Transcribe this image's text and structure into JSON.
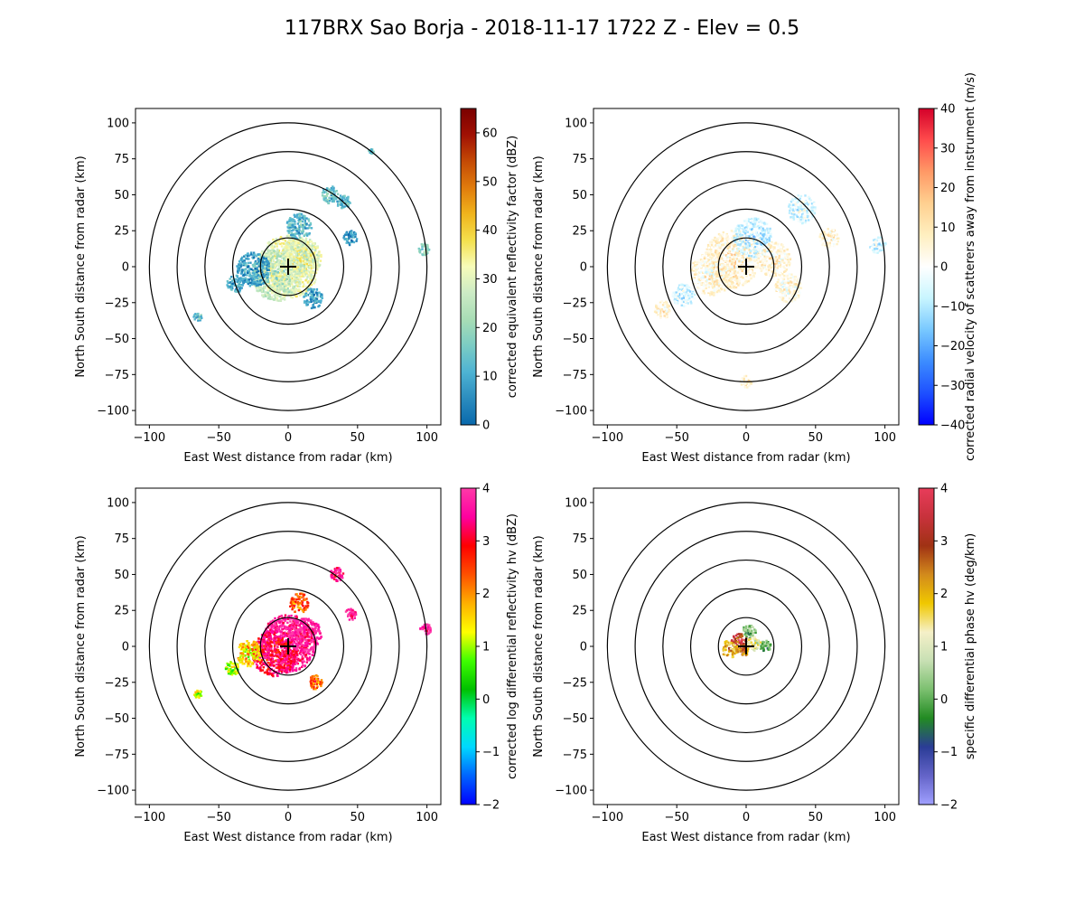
{
  "figure": {
    "title": "117BRX Sao Borja - 2018-11-17 1722 Z -  Elev = 0.5"
  },
  "chart_data": [
    {
      "type": "heatmap",
      "field": "reflectivity",
      "xlabel": "East West distance from radar (km)",
      "ylabel": "North South distance from radar (km)",
      "xlim": [
        -110,
        110
      ],
      "ylim": [
        -110,
        110
      ],
      "xticks": [
        -100,
        -50,
        0,
        50,
        100
      ],
      "yticks": [
        -100,
        -75,
        -50,
        -25,
        0,
        25,
        50,
        75,
        100
      ],
      "range_rings_km": [
        20,
        40,
        60,
        80,
        100
      ],
      "colorbar": {
        "label": "corrected equivalent reflectivity factor (dBZ)",
        "min": 0,
        "max": 65,
        "ticks": [
          0,
          10,
          20,
          30,
          40,
          50,
          60
        ],
        "colors": [
          "#0868ac",
          "#2b8cbe",
          "#4eb3d3",
          "#7bccc4",
          "#a8ddb5",
          "#ccebc5",
          "#f7fcb9",
          "#f4e04d",
          "#f0b41c",
          "#e07b0c",
          "#c44a05",
          "#a01003",
          "#7a0000"
        ]
      },
      "echoes": [
        {
          "x": 0,
          "y": 0,
          "r": 22,
          "value": 32
        },
        {
          "x": -8,
          "y": -6,
          "r": 18,
          "value": 26
        },
        {
          "x": 10,
          "y": 6,
          "r": 14,
          "value": 30
        },
        {
          "x": 8,
          "y": 28,
          "r": 9,
          "value": 12
        },
        {
          "x": -25,
          "y": -2,
          "r": 12,
          "value": 8
        },
        {
          "x": -38,
          "y": -12,
          "r": 6,
          "value": 10
        },
        {
          "x": 18,
          "y": -22,
          "r": 7,
          "value": 9
        },
        {
          "x": 30,
          "y": 50,
          "r": 6,
          "value": 14
        },
        {
          "x": 40,
          "y": 45,
          "r": 5,
          "value": 12
        },
        {
          "x": 45,
          "y": 20,
          "r": 5,
          "value": 8
        },
        {
          "x": 98,
          "y": 12,
          "r": 4,
          "value": 16
        },
        {
          "x": -65,
          "y": -35,
          "r": 3,
          "value": 14
        },
        {
          "x": 60,
          "y": 80,
          "r": 2,
          "value": 15
        }
      ]
    },
    {
      "type": "heatmap",
      "field": "velocity",
      "xlabel": "East West distance from radar (km)",
      "ylabel": "North South distance from radar (km)",
      "xlim": [
        -110,
        110
      ],
      "ylim": [
        -110,
        110
      ],
      "xticks": [
        -100,
        -50,
        0,
        50,
        100
      ],
      "yticks": [
        -100,
        -75,
        -50,
        -25,
        0,
        25,
        50,
        75,
        100
      ],
      "range_rings_km": [
        20,
        40,
        60,
        80,
        100
      ],
      "colorbar": {
        "label": "corrected radial velocity of scatterers away from instrument (m/s)",
        "min": -40,
        "max": 40,
        "ticks": [
          -40,
          -30,
          -20,
          -10,
          0,
          10,
          20,
          30,
          40
        ],
        "colors": [
          "#0000ff",
          "#1e50ff",
          "#3c8cff",
          "#78c8ff",
          "#c8f5ff",
          "#ffffff",
          "#ffefc0",
          "#ffd090",
          "#ff9966",
          "#ff4c4c",
          "#d4002a"
        ]
      },
      "echoes": [
        {
          "x": -10,
          "y": 5,
          "r": 20,
          "value": 6
        },
        {
          "x": 5,
          "y": 20,
          "r": 14,
          "value": -7
        },
        {
          "x": 20,
          "y": 5,
          "r": 12,
          "value": 5
        },
        {
          "x": -25,
          "y": -5,
          "r": 15,
          "value": 5
        },
        {
          "x": 30,
          "y": -15,
          "r": 10,
          "value": 4
        },
        {
          "x": -45,
          "y": -20,
          "r": 8,
          "value": -6
        },
        {
          "x": 40,
          "y": 40,
          "r": 10,
          "value": -5
        },
        {
          "x": -60,
          "y": -30,
          "r": 6,
          "value": 6
        },
        {
          "x": 95,
          "y": 15,
          "r": 6,
          "value": -7
        },
        {
          "x": 60,
          "y": 20,
          "r": 7,
          "value": 5
        },
        {
          "x": 0,
          "y": -80,
          "r": 4,
          "value": 6
        }
      ]
    },
    {
      "type": "heatmap",
      "field": "differential_reflectivity",
      "xlabel": "East West distance from radar (km)",
      "ylabel": "North South distance from radar (km)",
      "xlim": [
        -110,
        110
      ],
      "ylim": [
        -110,
        110
      ],
      "xticks": [
        -100,
        -50,
        0,
        50,
        100
      ],
      "yticks": [
        -100,
        -75,
        -50,
        -25,
        0,
        25,
        50,
        75,
        100
      ],
      "range_rings_km": [
        20,
        40,
        60,
        80,
        100
      ],
      "colorbar": {
        "label": "corrected log differential reflectivity hv (dBZ)",
        "min": -2,
        "max": 4,
        "ticks": [
          -2,
          -1,
          0,
          1,
          2,
          3,
          4
        ],
        "colors": [
          "#0000ff",
          "#0064ff",
          "#00d8ff",
          "#00ffb0",
          "#00c000",
          "#40ff00",
          "#ffff00",
          "#ffb000",
          "#ff5000",
          "#ff0000",
          "#ff00a0",
          "#ff3aa8"
        ]
      },
      "echoes": [
        {
          "x": 0,
          "y": 2,
          "r": 20,
          "value": 3.6
        },
        {
          "x": -10,
          "y": -5,
          "r": 16,
          "value": 3.2
        },
        {
          "x": 12,
          "y": 8,
          "r": 12,
          "value": 3.8
        },
        {
          "x": 8,
          "y": 30,
          "r": 7,
          "value": 2.4
        },
        {
          "x": -28,
          "y": -5,
          "r": 9,
          "value": 1.6
        },
        {
          "x": -40,
          "y": -15,
          "r": 5,
          "value": 0.9
        },
        {
          "x": 20,
          "y": -25,
          "r": 5,
          "value": 2.2
        },
        {
          "x": 35,
          "y": 50,
          "r": 5,
          "value": 3.4
        },
        {
          "x": 45,
          "y": 22,
          "r": 4,
          "value": 3.7
        },
        {
          "x": 99,
          "y": 12,
          "r": 4,
          "value": 3.9
        },
        {
          "x": -65,
          "y": -33,
          "r": 3,
          "value": 1.2
        }
      ]
    },
    {
      "type": "heatmap",
      "field": "specific_differential_phase",
      "xlabel": "East West distance from radar (km)",
      "ylabel": "North South distance from radar (km)",
      "xlim": [
        -110,
        110
      ],
      "ylim": [
        -110,
        110
      ],
      "xticks": [
        -100,
        -50,
        0,
        50,
        100
      ],
      "yticks": [
        -100,
        -75,
        -50,
        -25,
        0,
        25,
        50,
        75,
        100
      ],
      "range_rings_km": [
        20,
        40,
        60,
        80,
        100
      ],
      "colorbar": {
        "label": "specific differential phase hv (deg/km)",
        "min": -2,
        "max": 4,
        "ticks": [
          -2,
          -1,
          0,
          1,
          2,
          3,
          4
        ],
        "colors": [
          "#a0a0ff",
          "#6464c8",
          "#2a3c96",
          "#228b22",
          "#7cc070",
          "#c8e0b4",
          "#f5f0c8",
          "#f0c800",
          "#d28a1c",
          "#a03214",
          "#c8323c",
          "#e83c5a"
        ]
      },
      "echoes": [
        {
          "x": -5,
          "y": 3,
          "r": 6,
          "value": 3.1
        },
        {
          "x": 2,
          "y": 10,
          "r": 5,
          "value": 0.2
        },
        {
          "x": -12,
          "y": -2,
          "r": 6,
          "value": 1.9
        },
        {
          "x": 6,
          "y": 2,
          "r": 5,
          "value": 1.2
        },
        {
          "x": 14,
          "y": 0,
          "r": 4,
          "value": 0.0
        },
        {
          "x": -2,
          "y": -3,
          "r": 4,
          "value": 2.3
        }
      ]
    }
  ]
}
